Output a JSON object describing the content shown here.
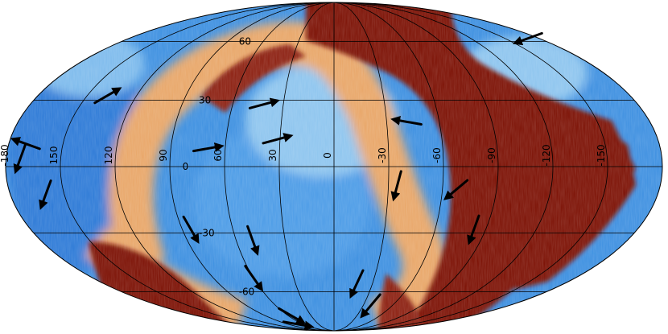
{
  "projection": "Mollweide all-sky",
  "colors": {
    "background": "#ffffff",
    "sky_low": "#3a8ee0",
    "sky_mid": "#8cc4ee",
    "sky_neutral": "#f2ecd6",
    "sky_warm": "#e8a566",
    "sky_high": "#7a0d00",
    "graticule": "#000000",
    "arrow": "#000000"
  },
  "longitude_labels": [
    {
      "value": 180,
      "text": "-180"
    },
    {
      "value": 150,
      "text": "150"
    },
    {
      "value": 120,
      "text": "120"
    },
    {
      "value": 90,
      "text": "90"
    },
    {
      "value": 60,
      "text": "60"
    },
    {
      "value": 30,
      "text": "30"
    },
    {
      "value": 0,
      "text": "0"
    },
    {
      "value": -30,
      "text": "-30"
    },
    {
      "value": -60,
      "text": "-60"
    },
    {
      "value": -90,
      "text": "-90"
    },
    {
      "value": -120,
      "text": "-120"
    },
    {
      "value": -150,
      "text": "-150"
    }
  ],
  "latitude_labels": [
    {
      "value": 60,
      "text": "60"
    },
    {
      "value": 30,
      "text": "30"
    },
    {
      "value": 0,
      "text": "0"
    },
    {
      "value": -30,
      "text": "-30"
    },
    {
      "value": -60,
      "text": "-60"
    }
  ],
  "vector_arrows": [
    {
      "lon": 138,
      "lat": 32,
      "dir_deg": 30
    },
    {
      "lon": 42,
      "lat": 28,
      "dir_deg": 15
    },
    {
      "lon": -42,
      "lat": 20,
      "dir_deg": 170
    },
    {
      "lon": 32,
      "lat": 12,
      "dir_deg": 15
    },
    {
      "lon": 70,
      "lat": 8,
      "dir_deg": 10
    },
    {
      "lon": -172,
      "lat": 62,
      "dir_deg": 200
    },
    {
      "lon": 170,
      "lat": 10,
      "dir_deg": 160
    },
    {
      "lon": 172,
      "lat": 4,
      "dir_deg": 250
    },
    {
      "lon": 160,
      "lat": -12,
      "dir_deg": 250
    },
    {
      "lon": -35,
      "lat": -8,
      "dir_deg": 255
    },
    {
      "lon": -68,
      "lat": -10,
      "dir_deg": 220
    },
    {
      "lon": 85,
      "lat": -28,
      "dir_deg": 300
    },
    {
      "lon": 50,
      "lat": -33,
      "dir_deg": 290
    },
    {
      "lon": 60,
      "lat": -52,
      "dir_deg": 305
    },
    {
      "lon": -83,
      "lat": -28,
      "dir_deg": 250
    },
    {
      "lon": -18,
      "lat": -55,
      "dir_deg": 245
    },
    {
      "lon": -38,
      "lat": -68,
      "dir_deg": 230
    },
    {
      "lon": 72,
      "lat": -82,
      "dir_deg": 350
    },
    {
      "lon": 56,
      "lat": -75,
      "dir_deg": 330
    }
  ]
}
